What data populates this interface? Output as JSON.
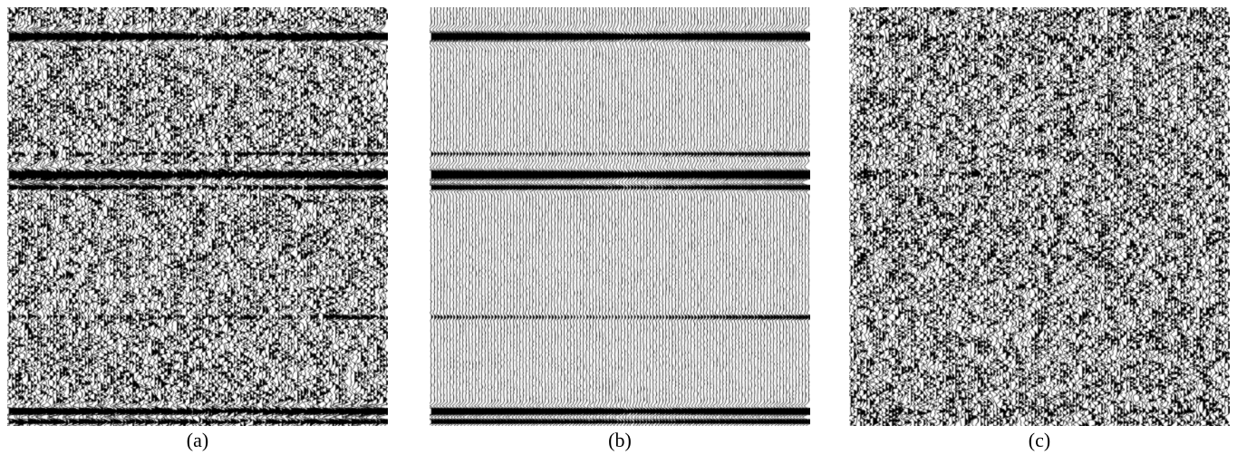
{
  "panels": [
    {
      "id": "a",
      "caption": "(a)",
      "description_kind": "noisy seismic gather with coherent horizontal events and strong noise"
    },
    {
      "id": "b",
      "caption": "(b)",
      "description_kind": "denoised seismic gather, coherent events preserved, clean background"
    },
    {
      "id": "c",
      "caption": "(c)",
      "description_kind": "removed noise section, mostly random noise texture"
    }
  ],
  "colors": {
    "trace": "#000000",
    "background": "#ffffff"
  }
}
